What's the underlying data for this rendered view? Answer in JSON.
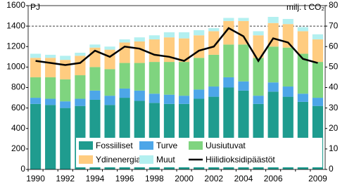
{
  "chart_data": {
    "type": "bar_line",
    "y_label": "PJ",
    "y2_label": "milj. t CO₂",
    "categories": [
      "1990",
      null,
      "1992",
      null,
      "1994",
      null,
      "1996",
      null,
      "1998",
      null,
      "2000",
      null,
      "2002",
      null,
      "2004",
      null,
      "2006",
      null,
      null,
      "2009"
    ],
    "series": [
      {
        "name": "Fossiiliset",
        "color": "#1f9c8f",
        "values": [
          640,
          630,
          600,
          620,
          680,
          630,
          700,
          670,
          650,
          640,
          640,
          690,
          710,
          800,
          770,
          640,
          760,
          710,
          660,
          620
        ]
      },
      {
        "name": "Turve",
        "color": "#4da6e8",
        "values": [
          60,
          60,
          65,
          70,
          90,
          90,
          90,
          100,
          90,
          90,
          80,
          90,
          100,
          100,
          90,
          80,
          90,
          100,
          80,
          80
        ]
      },
      {
        "name": "Uusiutuvat",
        "color": "#7fd47f",
        "values": [
          200,
          210,
          215,
          230,
          230,
          260,
          250,
          270,
          310,
          320,
          330,
          310,
          310,
          320,
          360,
          370,
          350,
          380,
          390,
          350
        ]
      },
      {
        "name": "Ydinenergia",
        "color": "#ffcc80",
        "values": [
          190,
          190,
          190,
          190,
          190,
          190,
          200,
          210,
          220,
          240,
          230,
          220,
          230,
          230,
          230,
          220,
          230,
          230,
          220,
          220
        ]
      },
      {
        "name": "Muut",
        "color": "#b3f0f0",
        "values": [
          40,
          30,
          40,
          30,
          30,
          30,
          30,
          40,
          40,
          50,
          60,
          50,
          30,
          30,
          30,
          40,
          60,
          50,
          40,
          50
        ]
      },
      {
        "name": "Hiilidioksidipäästöt",
        "color": "#000000",
        "axis": "y2",
        "type": "line",
        "values": [
          53,
          52,
          51,
          52,
          58,
          55,
          60,
          59,
          56,
          55,
          53,
          58,
          60,
          69,
          65,
          53,
          64,
          62,
          54,
          52
        ]
      }
    ],
    "ylim": [
      0,
      1600
    ],
    "yticks": [
      0,
      200,
      400,
      600,
      800,
      1000,
      1200,
      1400,
      1600
    ],
    "y2lim": [
      0,
      80
    ],
    "y2ticks": [
      0,
      10,
      20,
      30,
      40,
      50,
      60,
      70,
      80
    ],
    "gridlines": [
      1400
    ]
  }
}
